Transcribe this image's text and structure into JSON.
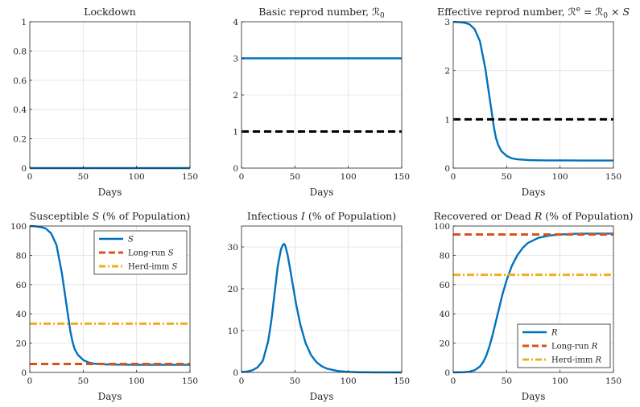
{
  "chart_data": [
    {
      "id": "lockdown",
      "type": "line",
      "title": "Lockdown",
      "xlabel": "Days",
      "ylabel": "",
      "xlim": [
        0,
        150
      ],
      "ylim": [
        0,
        1
      ],
      "xticks": [
        0,
        50,
        100,
        150
      ],
      "yticks": [
        0,
        0.2,
        0.4,
        0.6,
        0.8,
        1
      ],
      "ytick_labels": [
        "0",
        "0.2",
        "0.4",
        "0.6",
        "0.8",
        "1"
      ],
      "grid": true,
      "legend": null,
      "series": [
        {
          "style": "solid",
          "color": "#0072BD",
          "x": [
            0,
            150
          ],
          "y": [
            0,
            0
          ]
        }
      ]
    },
    {
      "id": "r0",
      "type": "line",
      "title": "Basic reprod number, ℛ",
      "title_sub": "0",
      "xlabel": "Days",
      "ylabel": "",
      "xlim": [
        0,
        150
      ],
      "ylim": [
        0,
        4
      ],
      "xticks": [
        0,
        50,
        100,
        150
      ],
      "yticks": [
        0,
        1,
        2,
        3,
        4
      ],
      "ytick_labels": [
        "0",
        "1",
        "2",
        "3",
        "4"
      ],
      "grid": true,
      "legend": null,
      "series": [
        {
          "style": "solid",
          "color": "#0072BD",
          "x": [
            0,
            150
          ],
          "y": [
            3,
            3
          ]
        },
        {
          "style": "dashed",
          "color": "#000000",
          "x": [
            0,
            150
          ],
          "y": [
            1,
            1
          ]
        }
      ]
    },
    {
      "id": "re",
      "type": "line",
      "title": "Effective reprod number, ℛ",
      "title_sup": "e",
      "title_rest": " = ℛ",
      "title_rest_sub": "0",
      "title_end": " × S",
      "xlabel": "Days",
      "ylabel": "",
      "xlim": [
        0,
        150
      ],
      "ylim": [
        0,
        3
      ],
      "xticks": [
        0,
        50,
        100,
        150
      ],
      "yticks": [
        0,
        1,
        2,
        3
      ],
      "ytick_labels": [
        "0",
        "1",
        "2",
        "3"
      ],
      "grid": true,
      "legend": null,
      "series": [
        {
          "style": "solid",
          "color": "#0072BD",
          "x": [
            0,
            5,
            10,
            15,
            20,
            25,
            30,
            33,
            36,
            38,
            40,
            42,
            45,
            50,
            55,
            60,
            70,
            80,
            90,
            100,
            110,
            120,
            130,
            140,
            150
          ],
          "y": [
            3.0,
            2.99,
            2.98,
            2.95,
            2.85,
            2.6,
            2.05,
            1.6,
            1.15,
            0.85,
            0.62,
            0.48,
            0.35,
            0.25,
            0.2,
            0.18,
            0.165,
            0.16,
            0.158,
            0.157,
            0.157,
            0.156,
            0.156,
            0.156,
            0.156
          ]
        },
        {
          "style": "dashed",
          "color": "#000000",
          "x": [
            0,
            150
          ],
          "y": [
            1,
            1
          ]
        }
      ]
    },
    {
      "id": "susceptible",
      "type": "line",
      "title": "Susceptible S (% of Population)",
      "title_italic_letter": "S",
      "title_prefix": "Susceptible ",
      "title_suffix": " (% of Population)",
      "xlabel": "Days",
      "ylabel": "",
      "xlim": [
        0,
        150
      ],
      "ylim": [
        0,
        100
      ],
      "xticks": [
        0,
        50,
        100,
        150
      ],
      "yticks": [
        0,
        20,
        40,
        60,
        80,
        100
      ],
      "ytick_labels": [
        "0",
        "20",
        "40",
        "60",
        "80",
        "100"
      ],
      "grid": true,
      "legend": "top-right",
      "series": [
        {
          "name": "S",
          "style": "solid",
          "color": "#0072BD",
          "x": [
            0,
            5,
            10,
            15,
            20,
            25,
            30,
            33,
            36,
            38,
            40,
            42,
            45,
            50,
            55,
            60,
            70,
            80,
            90,
            100,
            110,
            120,
            130,
            140,
            150
          ],
          "y": [
            100,
            99.8,
            99.3,
            98.3,
            95,
            87,
            68,
            53,
            38,
            28,
            21,
            16,
            12,
            8.5,
            6.8,
            6.0,
            5.5,
            5.3,
            5.25,
            5.2,
            5.2,
            5.2,
            5.2,
            5.2,
            5.2
          ]
        },
        {
          "name": "Long-run S",
          "style": "dashed",
          "color": "#D95319",
          "x": [
            0,
            150
          ],
          "y": [
            5.8,
            5.8
          ]
        },
        {
          "name": "Herd-imm S",
          "style": "dashdot",
          "color": "#EDB120",
          "x": [
            0,
            150
          ],
          "y": [
            33.3,
            33.3
          ]
        }
      ]
    },
    {
      "id": "infectious",
      "type": "line",
      "title_prefix": "Infectious ",
      "title_italic_letter": "I",
      "title_suffix": " (% of Population)",
      "xlabel": "Days",
      "ylabel": "",
      "xlim": [
        0,
        150
      ],
      "ylim": [
        0,
        35
      ],
      "xticks": [
        0,
        50,
        100,
        150
      ],
      "yticks": [
        0,
        10,
        20,
        30
      ],
      "ytick_labels": [
        "0",
        "10",
        "20",
        "30"
      ],
      "grid": true,
      "legend": null,
      "series": [
        {
          "style": "solid",
          "color": "#0072BD",
          "x": [
            0,
            5,
            10,
            15,
            20,
            25,
            28,
            31,
            34,
            37,
            39,
            40,
            41,
            43,
            45,
            48,
            51,
            55,
            60,
            65,
            70,
            75,
            80,
            90,
            100,
            110,
            125,
            150
          ],
          "y": [
            0.1,
            0.2,
            0.5,
            1.2,
            2.8,
            7.5,
            12.5,
            19,
            25.5,
            29.5,
            30.6,
            30.7,
            30.3,
            28.3,
            25.5,
            21,
            16.5,
            11.5,
            7.0,
            4.2,
            2.5,
            1.5,
            0.9,
            0.35,
            0.13,
            0.05,
            0.02,
            0.0
          ]
        }
      ]
    },
    {
      "id": "recovered",
      "type": "line",
      "title_prefix": "Recovered or Dead ",
      "title_italic_letter": "R",
      "title_suffix": " (% of Population)",
      "xlabel": "Days",
      "ylabel": "",
      "xlim": [
        0,
        150
      ],
      "ylim": [
        0,
        100
      ],
      "xticks": [
        0,
        50,
        100,
        150
      ],
      "yticks": [
        0,
        20,
        40,
        60,
        80,
        100
      ],
      "ytick_labels": [
        "0",
        "20",
        "40",
        "60",
        "80",
        "100"
      ],
      "grid": true,
      "legend": "bottom-right",
      "series": [
        {
          "name": "R",
          "style": "solid",
          "color": "#0072BD",
          "x": [
            0,
            10,
            15,
            20,
            25,
            28,
            31,
            34,
            37,
            40,
            43,
            46,
            50,
            55,
            60,
            65,
            70,
            80,
            90,
            100,
            110,
            120,
            150
          ],
          "y": [
            0,
            0.2,
            0.5,
            1.5,
            4,
            7,
            11.5,
            18,
            26,
            35,
            44,
            53,
            63,
            73,
            80,
            85,
            88.5,
            92,
            93.5,
            94.2,
            94.6,
            94.8,
            94.8
          ]
        },
        {
          "name": "Long-run R",
          "style": "dashed",
          "color": "#D95319",
          "x": [
            0,
            150
          ],
          "y": [
            94.2,
            94.2
          ]
        },
        {
          "name": "Herd-imm R",
          "style": "dashdot",
          "color": "#EDB120",
          "x": [
            0,
            150
          ],
          "y": [
            66.7,
            66.7
          ]
        }
      ]
    }
  ],
  "legend_labels": {
    "susceptible": [
      {
        "prefix": "",
        "italic": "S"
      },
      {
        "prefix": "Long-run ",
        "italic": "S"
      },
      {
        "prefix": "Herd-imm ",
        "italic": "S"
      }
    ],
    "recovered": [
      {
        "prefix": "",
        "italic": "R"
      },
      {
        "prefix": "Long-run ",
        "italic": "R"
      },
      {
        "prefix": "Herd-imm ",
        "italic": "R"
      }
    ]
  }
}
